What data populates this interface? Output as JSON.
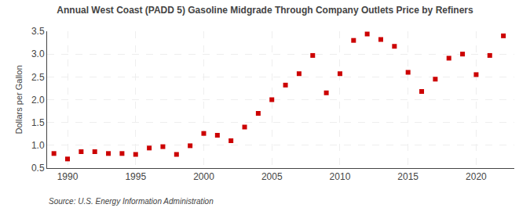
{
  "chart_data": {
    "type": "scatter",
    "title": "Annual West Coast (PADD 5) Gasoline Midgrade Through Company Outlets Price by Refiners",
    "ylabel": "Dollars per Gallon",
    "annotations": [
      "Source: U.S. Energy Information Administration"
    ],
    "x": [
      1989,
      1990,
      1991,
      1992,
      1993,
      1994,
      1995,
      1996,
      1997,
      1998,
      1999,
      2000,
      2001,
      2002,
      2003,
      2004,
      2005,
      2006,
      2007,
      2008,
      2009,
      2010,
      2011,
      2012,
      2013,
      2014,
      2015,
      2016,
      2017,
      2018,
      2019,
      2020,
      2021,
      2022
    ],
    "values": [
      0.82,
      0.7,
      0.86,
      0.86,
      0.82,
      0.82,
      0.8,
      0.94,
      0.97,
      0.8,
      0.99,
      1.26,
      1.22,
      1.1,
      1.4,
      1.7,
      2.0,
      2.32,
      2.57,
      2.97,
      2.15,
      2.57,
      3.3,
      3.44,
      3.32,
      3.17,
      2.6,
      2.18,
      2.45,
      2.91,
      3.0,
      2.55,
      2.97,
      3.4
    ],
    "color": "#cc0000",
    "marker": "square",
    "xlim": [
      1988.5,
      2022.8
    ],
    "ylim": [
      0.5,
      3.5
    ],
    "xticks": [
      1990,
      1995,
      2000,
      2005,
      2010,
      2015,
      2020
    ],
    "yticks": [
      0.5,
      {
        "value": 1.0,
        "label": "1.0"
      },
      1.5,
      {
        "value": 2.0,
        "label": "2.0"
      },
      2.5,
      {
        "value": 3.0,
        "label": "3.0"
      },
      3.5
    ],
    "grid": true
  }
}
